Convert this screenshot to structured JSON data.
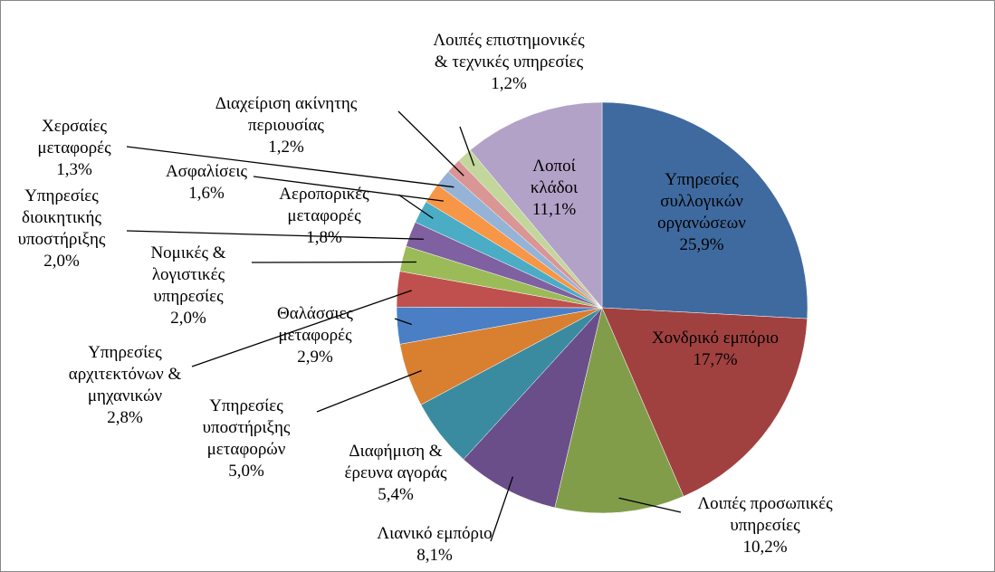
{
  "chart_data": {
    "type": "pie",
    "categories": [
      "Υπηρεσίες συλλογικών οργανώσεων",
      "Χονδρικό εμπόριο",
      "Λοιπές προσωπικές υπηρεσίες",
      "Λιανικό εμπόριο",
      "Διαφήμιση & έρευνα αγοράς",
      "Υπηρεσίες υποστήριξης μεταφορών",
      "Θαλάσσιες μεταφορές",
      "Υπηρεσίες αρχιτεκτόνων & μηχανικών",
      "Νομικές & λογιστικές υπηρεσίες",
      "Υπηρεσίες διοικητικής υποστήριξης",
      "Αεροπορικές μεταφορές",
      "Ασφαλίσεις",
      "Χερσαίες μεταφορές",
      "Διαχείριση ακίνητης περιουσίας",
      "Λοιπές επιστημονικές & τεχνικές υπηρεσίες",
      "Λοποί κλάδοι"
    ],
    "values": [
      25.9,
      17.7,
      10.2,
      8.1,
      5.4,
      5.0,
      2.9,
      2.8,
      2.0,
      2.0,
      1.8,
      1.6,
      1.3,
      1.2,
      1.2,
      11.1
    ],
    "value_labels": [
      "25,9%",
      "17,7%",
      "10,2%",
      "8,1%",
      "5,4%",
      "5,0%",
      "2,9%",
      "2,8%",
      "2,0%",
      "2,0%",
      "1,8%",
      "1,6%",
      "1,3%",
      "1,2%",
      "1,2%",
      "11,1%"
    ],
    "colors": [
      "#3f6a9f",
      "#a04140",
      "#829d4a",
      "#6a4e8a",
      "#3b8ba0",
      "#d97f30",
      "#4a7fc5",
      "#c0504d",
      "#9bbb59",
      "#7f60a0",
      "#4bacc6",
      "#f79646",
      "#95b3d7",
      "#d99694",
      "#c3d69b",
      "#b3a2c7"
    ],
    "start_angle": 90,
    "direction": "clockwise"
  }
}
